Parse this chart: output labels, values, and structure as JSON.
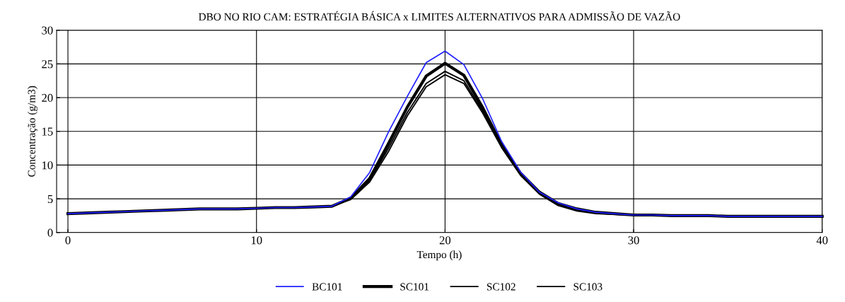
{
  "chart_data": {
    "type": "line",
    "title": "DBO NO RIO CAM: ESTRATÉGIA BÁSICA x LIMITES ALTERNATIVOS PARA ADMISSÃO DE VAZÃO",
    "xlabel": "Tempo (h)",
    "ylabel": "Concentração (g/m3)",
    "x": [
      0,
      1,
      2,
      3,
      4,
      5,
      6,
      7,
      8,
      9,
      10,
      11,
      12,
      13,
      14,
      15,
      16,
      17,
      18,
      19,
      20,
      21,
      22,
      23,
      24,
      25,
      26,
      27,
      28,
      29,
      30,
      31,
      32,
      33,
      34,
      35,
      36,
      37,
      38,
      39,
      40
    ],
    "series": [
      {
        "name": "BC101",
        "color": "#2020ff",
        "values": [
          2.8,
          2.9,
          3.0,
          3.1,
          3.2,
          3.3,
          3.4,
          3.5,
          3.5,
          3.5,
          3.6,
          3.7,
          3.7,
          3.8,
          3.9,
          5.3,
          8.9,
          14.9,
          20.2,
          25.2,
          26.9,
          24.9,
          19.8,
          13.5,
          9.0,
          6.0,
          4.4,
          3.5,
          3.0,
          2.8,
          2.6,
          2.6,
          2.5,
          2.5,
          2.5,
          2.4,
          2.4,
          2.4,
          2.4,
          2.4,
          2.4
        ]
      },
      {
        "name": "SC101",
        "color": "#000000",
        "values": [
          2.8,
          2.9,
          3.0,
          3.1,
          3.2,
          3.3,
          3.4,
          3.5,
          3.5,
          3.5,
          3.6,
          3.7,
          3.7,
          3.8,
          3.9,
          5.1,
          8.0,
          13.2,
          18.6,
          23.2,
          25.1,
          23.3,
          18.5,
          13.0,
          8.8,
          6.0,
          4.3,
          3.5,
          3.0,
          2.8,
          2.6,
          2.6,
          2.5,
          2.5,
          2.5,
          2.4,
          2.4,
          2.4,
          2.4,
          2.4,
          2.4
        ]
      },
      {
        "name": "SC102",
        "color": "#000000",
        "values": [
          2.8,
          2.9,
          3.0,
          3.1,
          3.2,
          3.3,
          3.4,
          3.5,
          3.5,
          3.5,
          3.6,
          3.7,
          3.7,
          3.8,
          3.9,
          5.0,
          7.7,
          12.5,
          17.8,
          22.1,
          23.9,
          22.5,
          18.0,
          12.8,
          8.6,
          5.8,
          4.1,
          3.3,
          2.9,
          2.7,
          2.6,
          2.6,
          2.5,
          2.5,
          2.5,
          2.4,
          2.4,
          2.4,
          2.4,
          2.4,
          2.4
        ]
      },
      {
        "name": "SC103",
        "color": "#000000",
        "values": [
          2.8,
          2.9,
          3.0,
          3.1,
          3.2,
          3.3,
          3.4,
          3.5,
          3.5,
          3.5,
          3.6,
          3.7,
          3.7,
          3.8,
          3.9,
          4.9,
          7.5,
          12.0,
          17.3,
          21.6,
          23.4,
          22.1,
          17.7,
          12.6,
          8.5,
          5.7,
          4.0,
          3.2,
          2.8,
          2.7,
          2.6,
          2.6,
          2.5,
          2.5,
          2.5,
          2.4,
          2.4,
          2.4,
          2.4,
          2.4,
          2.4
        ]
      }
    ],
    "xlim": [
      -0.6,
      40
    ],
    "ylim": [
      0,
      30
    ],
    "xticks": [
      0,
      10,
      20,
      30,
      40
    ],
    "yticks": [
      0,
      5,
      10,
      15,
      20,
      25,
      30
    ],
    "grid": true,
    "legend": "bottom",
    "marker": "none",
    "line_style": "solid"
  }
}
